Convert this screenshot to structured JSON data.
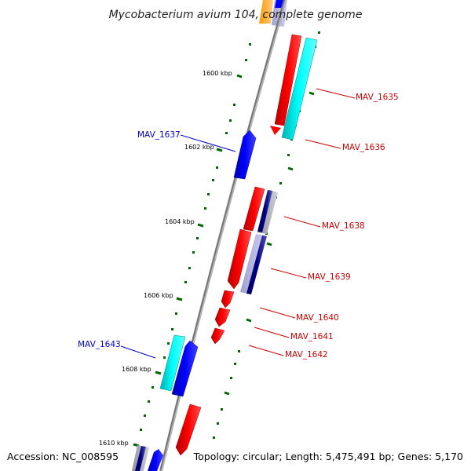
{
  "title": "Mycobacterium avium 104, complete genome",
  "accession": "Accession: NC_008595",
  "topology": "Topology: circular; Length: 5,475,491 bp; Genes: 5,170",
  "ticks": [
    "1600 kbp",
    "1602 kbp",
    "1604 kbp",
    "1606 kbp",
    "1608 kbp",
    "1610 kbp"
  ],
  "gene_labels": [
    {
      "text": "MAV_1635",
      "color": "#cc0000"
    },
    {
      "text": "MAV_1636",
      "color": "#cc0000"
    },
    {
      "text": "MAV_1637",
      "color": "#0000cc"
    },
    {
      "text": "MAV_1638",
      "color": "#cc0000"
    },
    {
      "text": "MAV_1639",
      "color": "#cc0000"
    },
    {
      "text": "MAV_1640",
      "color": "#cc0000"
    },
    {
      "text": "MAV_1641",
      "color": "#cc0000"
    },
    {
      "text": "MAV_1642",
      "color": "#cc0000"
    },
    {
      "text": "MAV_1643",
      "color": "#0000cc"
    }
  ],
  "colors": {
    "backbone": "#888888",
    "forward_cds": "#ff0000",
    "reverse_cds": "#0000ff",
    "cyan_feature": "#00ffff",
    "navy_feature": "#000080",
    "orange_feature": "#ff9900",
    "tick_mark": "#006600"
  }
}
